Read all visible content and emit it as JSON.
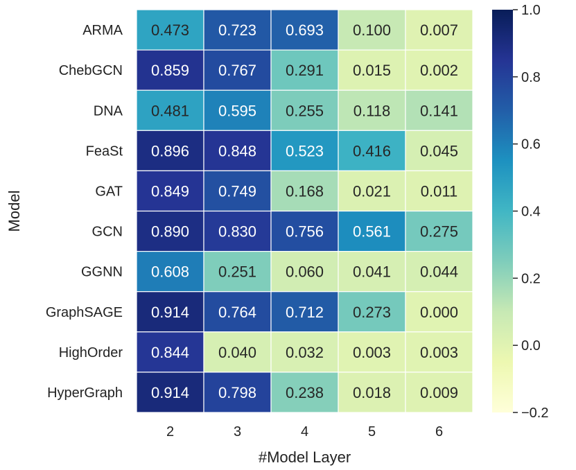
{
  "chart_data": {
    "type": "heatmap",
    "title": "",
    "xlabel": "#Model Layer",
    "ylabel": "Model",
    "x_categories": [
      "2",
      "3",
      "4",
      "5",
      "6"
    ],
    "y_categories": [
      "ARMA",
      "ChebGCN",
      "DNA",
      "FeaSt",
      "GAT",
      "GCN",
      "GGNN",
      "GraphSAGE",
      "HighOrder",
      "HyperGraph"
    ],
    "values": [
      [
        0.473,
        0.723,
        0.693,
        0.1,
        0.007
      ],
      [
        0.859,
        0.767,
        0.291,
        0.015,
        0.002
      ],
      [
        0.481,
        0.595,
        0.255,
        0.118,
        0.141
      ],
      [
        0.896,
        0.848,
        0.523,
        0.416,
        0.045
      ],
      [
        0.849,
        0.749,
        0.168,
        0.021,
        0.011
      ],
      [
        0.89,
        0.83,
        0.756,
        0.561,
        0.275
      ],
      [
        0.608,
        0.251,
        0.06,
        0.041,
        0.044
      ],
      [
        0.914,
        0.764,
        0.712,
        0.273,
        0.0
      ],
      [
        0.844,
        0.04,
        0.032,
        0.003,
        0.003
      ],
      [
        0.914,
        0.798,
        0.238,
        0.018,
        0.009
      ]
    ],
    "value_labels": [
      [
        "0.473",
        "0.723",
        "0.693",
        "0.100",
        "0.007"
      ],
      [
        "0.859",
        "0.767",
        "0.291",
        "0.015",
        "0.002"
      ],
      [
        "0.481",
        "0.595",
        "0.255",
        "0.118",
        "0.141"
      ],
      [
        "0.896",
        "0.848",
        "0.523",
        "0.416",
        "0.045"
      ],
      [
        "0.849",
        "0.749",
        "0.168",
        "0.021",
        "0.011"
      ],
      [
        "0.890",
        "0.830",
        "0.756",
        "0.561",
        "0.275"
      ],
      [
        "0.608",
        "0.251",
        "0.060",
        "0.041",
        "0.044"
      ],
      [
        "0.914",
        "0.764",
        "0.712",
        "0.273",
        "0.000"
      ],
      [
        "0.844",
        "0.040",
        "0.032",
        "0.003",
        "0.003"
      ],
      [
        "0.914",
        "0.798",
        "0.238",
        "0.018",
        "0.009"
      ]
    ],
    "colorbar": {
      "vmin": -0.2,
      "vmax": 1.0,
      "ticks": [
        1.0,
        0.8,
        0.6,
        0.4,
        0.2,
        0.0,
        -0.2
      ],
      "tick_labels": [
        "1.0",
        "0.8",
        "0.6",
        "0.4",
        "0.2",
        "0.0",
        "−0.2"
      ]
    },
    "colormap": "YlGnBu",
    "colormap_stops": [
      "#ffffd9",
      "#edf8b1",
      "#c7e9b4",
      "#7fcdbb",
      "#41b6c4",
      "#1d91c0",
      "#225ea8",
      "#253494",
      "#081d58"
    ],
    "annotation_text_colors": {
      "dark_bg": "#ffffff",
      "light_bg": "#262626"
    },
    "grid_line_color": "#ffffff"
  }
}
